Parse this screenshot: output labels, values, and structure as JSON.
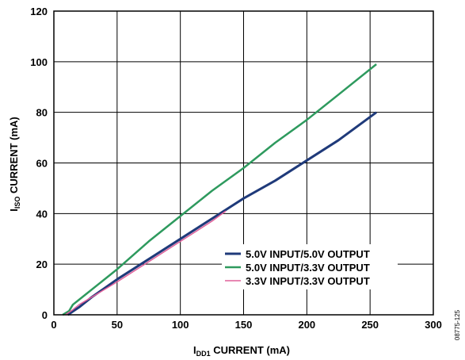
{
  "figure_code": "08775-125",
  "chart_data": {
    "type": "line",
    "xlabel_main": "I",
    "xlabel_sub": "DD1",
    "xlabel_rest": " CURRENT (mA)",
    "ylabel_main": "I",
    "ylabel_sub": "ISO",
    "ylabel_rest": " CURRENT (mA)",
    "xlim": [
      0,
      300
    ],
    "ylim": [
      0,
      120
    ],
    "xticks": [
      0,
      50,
      100,
      150,
      200,
      250,
      300
    ],
    "yticks": [
      0,
      20,
      40,
      60,
      80,
      100,
      120
    ],
    "grid": true,
    "legend_position": "lower-right",
    "series": [
      {
        "name": "5.0V INPUT/5.0V OUTPUT",
        "color": "#1f3a7a",
        "x": [
          11,
          20,
          30,
          50,
          75,
          100,
          125,
          150,
          175,
          200,
          225,
          255
        ],
        "y": [
          0,
          3,
          7,
          14,
          22,
          30,
          38,
          46,
          53,
          61,
          69,
          80
        ]
      },
      {
        "name": "5.0V INPUT/3.3V OUTPUT",
        "color": "#2e9a5e",
        "x": [
          7,
          12,
          15,
          25,
          50,
          75,
          100,
          125,
          150,
          175,
          200,
          225,
          255
        ],
        "y": [
          0,
          1.5,
          4,
          8,
          18,
          29,
          39,
          49,
          58,
          68,
          77,
          87,
          99
        ]
      },
      {
        "name": "3.3V INPUT/3.3V OUTPUT",
        "color": "#e0609a",
        "x": [
          9,
          15,
          20,
          30,
          50,
          75,
          100,
          125,
          136
        ],
        "y": [
          0,
          2,
          4,
          7,
          13,
          21,
          29,
          37,
          41
        ]
      }
    ]
  }
}
